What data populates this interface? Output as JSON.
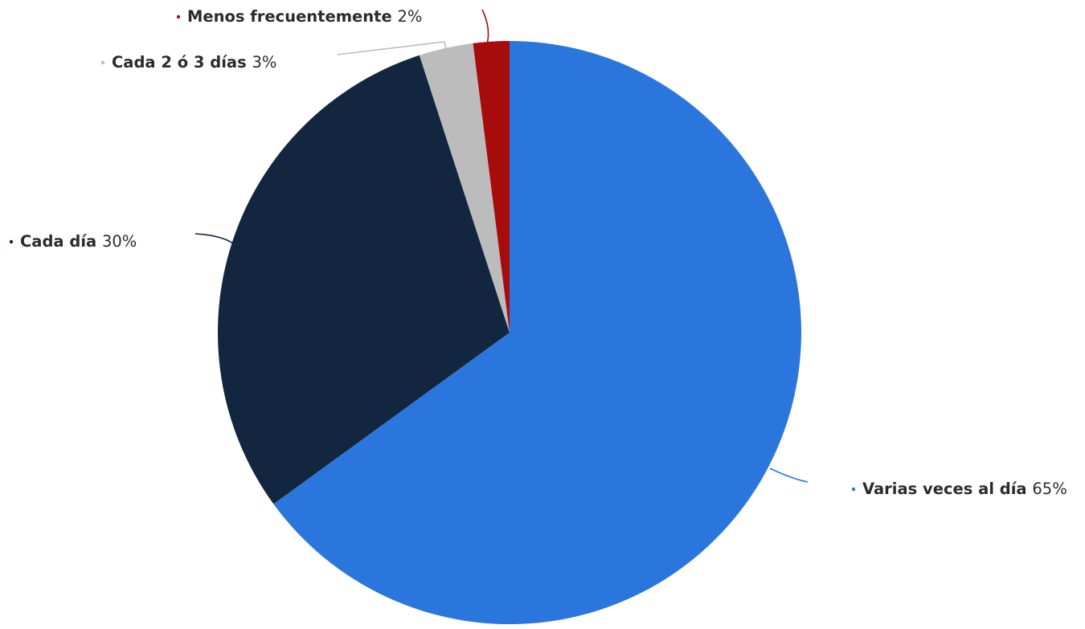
{
  "chart_data": {
    "type": "pie",
    "title": "",
    "start_angle_deg": 0,
    "direction": "clockwise",
    "slices": [
      {
        "label": "Varias veces al día",
        "value": 65,
        "value_label": "65%",
        "color": "#2a76dd"
      },
      {
        "label": "Cada día",
        "value": 30,
        "value_label": "30%",
        "color": "#12263f"
      },
      {
        "label": "Cada 2 ó 3 días",
        "value": 3,
        "value_label": "3%",
        "color": "#bcbcbc"
      },
      {
        "label": "Menos frecuentemente",
        "value": 2,
        "value_label": "2%",
        "color": "#a70c0c"
      }
    ]
  }
}
